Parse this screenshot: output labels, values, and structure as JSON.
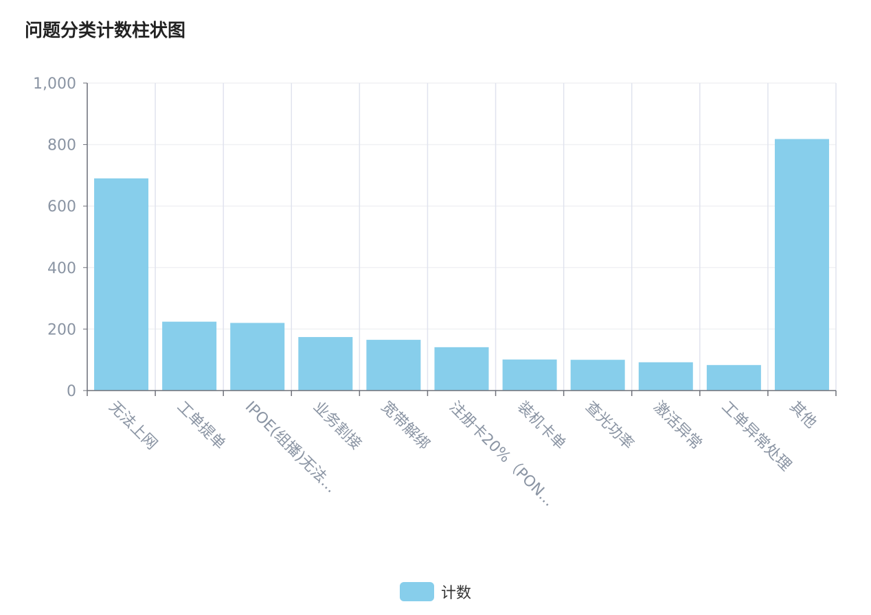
{
  "chart_data": {
    "type": "bar",
    "title": "问题分类计数柱状图",
    "categories": [
      "无法上网",
      "工单提单",
      "IPOE(组播)无法...",
      "业务割接",
      "宽带解绑",
      "注册卡20%（PON...",
      "装机卡单",
      "查光功率",
      "激活异常",
      "工单异常处理",
      "其他"
    ],
    "series": [
      {
        "name": "计数",
        "values": [
          690,
          224,
          220,
          174,
          165,
          141,
          101,
          100,
          92,
          83,
          818
        ]
      }
    ],
    "ylim": [
      0,
      1000
    ],
    "yticks": [
      0,
      200,
      400,
      600,
      800,
      1000
    ],
    "ytick_labels": [
      "0",
      "200",
      "400",
      "600",
      "800",
      "1,000"
    ],
    "grid": true,
    "legend_position": "bottom-center"
  },
  "colors": {
    "bar": "#87ceeb",
    "axis": "#6e7079",
    "grid": "#f0f1f4",
    "vgrid": "#e0e3ee",
    "tick_text": "#8a94a3"
  }
}
